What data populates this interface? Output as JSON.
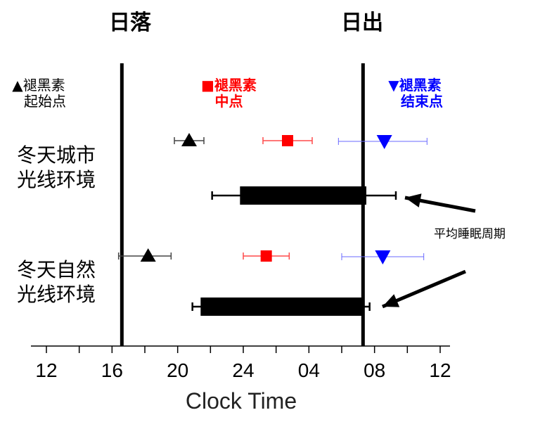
{
  "chart_data": {
    "type": "scatter",
    "xlabel": "Clock Time",
    "xticks": [
      "12",
      "16",
      "20",
      "24",
      "04",
      "08",
      "12"
    ],
    "x_hours": [
      12,
      16,
      20,
      24,
      28,
      32,
      36
    ],
    "xlim_hours": [
      10.2,
      37.5
    ],
    "minor_tick_step_hours": 2,
    "event_lines": [
      {
        "label": "日落",
        "hour": 16.6
      },
      {
        "label": "日出",
        "hour": 31.3
      }
    ],
    "markers_legend": [
      {
        "symbol": "▲",
        "lines": [
          "褪黑素",
          "起始点"
        ],
        "color": "#000000"
      },
      {
        "symbol": "■",
        "lines": [
          "褪黑素",
          "中点"
        ],
        "color": "#ff0000"
      },
      {
        "symbol": "▼",
        "lines": [
          "褪黑素",
          "结束点"
        ],
        "color": "#0000ff"
      }
    ],
    "conditions": [
      {
        "label_lines": [
          "冬天城市",
          "光线环境"
        ],
        "onset": {
          "hour": 20.7,
          "err": [
            19.8,
            21.6
          ]
        },
        "midpoint": {
          "hour": 26.7,
          "err": [
            25.2,
            28.2
          ]
        },
        "offset": {
          "hour": 32.6,
          "err": [
            29.8,
            35.2
          ]
        },
        "sleep": {
          "start": 23.8,
          "end": 31.5,
          "err": [
            22.1,
            33.3
          ]
        }
      },
      {
        "label_lines": [
          "冬天自然",
          "光线环境"
        ],
        "onset": {
          "hour": 18.2,
          "err": [
            16.4,
            19.6
          ]
        },
        "midpoint": {
          "hour": 25.4,
          "err": [
            24.0,
            26.8
          ]
        },
        "offset": {
          "hour": 32.5,
          "err": [
            30.0,
            35.0
          ]
        },
        "sleep": {
          "start": 21.4,
          "end": 31.3,
          "err": [
            20.9,
            31.7
          ]
        }
      }
    ],
    "annotation": "平均睡眠周期",
    "colors": {
      "onset": "#000000",
      "midpoint": "#ff0000",
      "offset": "#0000ff",
      "sleep": "#000000"
    }
  }
}
